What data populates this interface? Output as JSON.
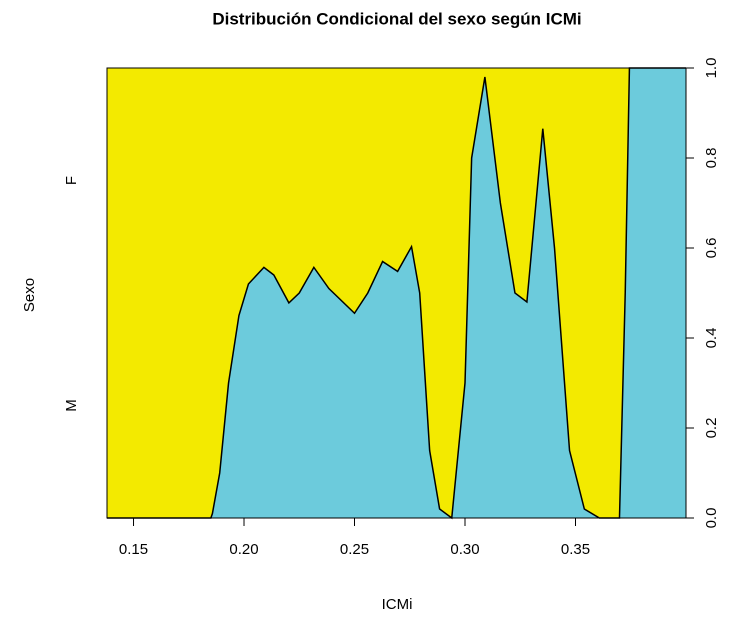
{
  "chart_data": {
    "type": "area",
    "title": "Distribución Condicional del sexo según ICMi",
    "x_label": "ICMi",
    "y_label": "Sexo",
    "y_categories": [
      "M",
      "F"
    ],
    "colors": [
      "#6ccbdc",
      "#f3ea00"
    ],
    "x": [
      0.138,
      0.185,
      0.1857,
      0.189,
      0.193,
      0.1977,
      0.202,
      0.209,
      0.2135,
      0.2203,
      0.225,
      0.2316,
      0.2384,
      0.25,
      0.256,
      0.2627,
      0.2695,
      0.2758,
      0.2795,
      0.284,
      0.2885,
      0.294,
      0.3,
      0.303,
      0.309,
      0.316,
      0.3226,
      0.328,
      0.3352,
      0.3405,
      0.3473,
      0.354,
      0.3608,
      0.3699,
      0.3725,
      0.3744,
      0.4
    ],
    "values": [
      0,
      0,
      0.01,
      0.1,
      0.3,
      0.45,
      0.52,
      0.557,
      0.54,
      0.478,
      0.5,
      0.557,
      0.51,
      0.455,
      0.5,
      0.57,
      0.548,
      0.603,
      0.5,
      0.15,
      0.02,
      0,
      0.3,
      0.8,
      0.98,
      0.7,
      0.5,
      0.48,
      0.865,
      0.6,
      0.15,
      0.02,
      0,
      0,
      0.5,
      1,
      1
    ],
    "xlim": [
      0.138,
      0.4
    ],
    "ylim": [
      0,
      1
    ],
    "xticks": [
      0.15,
      {
        "value": 0.2,
        "label": "0.20"
      },
      0.25,
      {
        "value": 0.3,
        "label": "0.30"
      },
      0.35
    ],
    "y2ticks": [
      {
        "value": 0,
        "label": "0.0"
      },
      {
        "value": 0.2,
        "label": "0.2"
      },
      {
        "value": 0.4,
        "label": "0.4"
      },
      {
        "value": 0.6,
        "label": "0.6"
      },
      {
        "value": 0.8,
        "label": "0.8"
      },
      {
        "value": 1,
        "label": "1.0"
      }
    ]
  }
}
